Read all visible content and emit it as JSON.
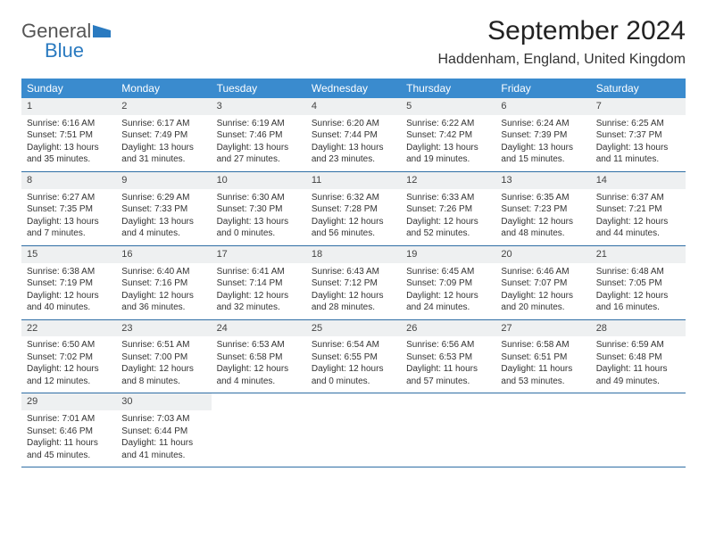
{
  "logo": {
    "line1": "General",
    "line2": "Blue",
    "icon_color": "#2a7ac0",
    "text_color_top": "#555555",
    "text_color_bottom": "#2a7ac0"
  },
  "title": "September 2024",
  "location": "Haddenham, England, United Kingdom",
  "colors": {
    "header_bg": "#3a8bce",
    "header_text": "#ffffff",
    "daynum_bg": "#eef0f1",
    "week_border": "#2f6ea5"
  },
  "dow": [
    "Sunday",
    "Monday",
    "Tuesday",
    "Wednesday",
    "Thursday",
    "Friday",
    "Saturday"
  ],
  "weeks": [
    [
      {
        "n": "1",
        "sr": "Sunrise: 6:16 AM",
        "ss": "Sunset: 7:51 PM",
        "d1": "Daylight: 13 hours",
        "d2": "and 35 minutes."
      },
      {
        "n": "2",
        "sr": "Sunrise: 6:17 AM",
        "ss": "Sunset: 7:49 PM",
        "d1": "Daylight: 13 hours",
        "d2": "and 31 minutes."
      },
      {
        "n": "3",
        "sr": "Sunrise: 6:19 AM",
        "ss": "Sunset: 7:46 PM",
        "d1": "Daylight: 13 hours",
        "d2": "and 27 minutes."
      },
      {
        "n": "4",
        "sr": "Sunrise: 6:20 AM",
        "ss": "Sunset: 7:44 PM",
        "d1": "Daylight: 13 hours",
        "d2": "and 23 minutes."
      },
      {
        "n": "5",
        "sr": "Sunrise: 6:22 AM",
        "ss": "Sunset: 7:42 PM",
        "d1": "Daylight: 13 hours",
        "d2": "and 19 minutes."
      },
      {
        "n": "6",
        "sr": "Sunrise: 6:24 AM",
        "ss": "Sunset: 7:39 PM",
        "d1": "Daylight: 13 hours",
        "d2": "and 15 minutes."
      },
      {
        "n": "7",
        "sr": "Sunrise: 6:25 AM",
        "ss": "Sunset: 7:37 PM",
        "d1": "Daylight: 13 hours",
        "d2": "and 11 minutes."
      }
    ],
    [
      {
        "n": "8",
        "sr": "Sunrise: 6:27 AM",
        "ss": "Sunset: 7:35 PM",
        "d1": "Daylight: 13 hours",
        "d2": "and 7 minutes."
      },
      {
        "n": "9",
        "sr": "Sunrise: 6:29 AM",
        "ss": "Sunset: 7:33 PM",
        "d1": "Daylight: 13 hours",
        "d2": "and 4 minutes."
      },
      {
        "n": "10",
        "sr": "Sunrise: 6:30 AM",
        "ss": "Sunset: 7:30 PM",
        "d1": "Daylight: 13 hours",
        "d2": "and 0 minutes."
      },
      {
        "n": "11",
        "sr": "Sunrise: 6:32 AM",
        "ss": "Sunset: 7:28 PM",
        "d1": "Daylight: 12 hours",
        "d2": "and 56 minutes."
      },
      {
        "n": "12",
        "sr": "Sunrise: 6:33 AM",
        "ss": "Sunset: 7:26 PM",
        "d1": "Daylight: 12 hours",
        "d2": "and 52 minutes."
      },
      {
        "n": "13",
        "sr": "Sunrise: 6:35 AM",
        "ss": "Sunset: 7:23 PM",
        "d1": "Daylight: 12 hours",
        "d2": "and 48 minutes."
      },
      {
        "n": "14",
        "sr": "Sunrise: 6:37 AM",
        "ss": "Sunset: 7:21 PM",
        "d1": "Daylight: 12 hours",
        "d2": "and 44 minutes."
      }
    ],
    [
      {
        "n": "15",
        "sr": "Sunrise: 6:38 AM",
        "ss": "Sunset: 7:19 PM",
        "d1": "Daylight: 12 hours",
        "d2": "and 40 minutes."
      },
      {
        "n": "16",
        "sr": "Sunrise: 6:40 AM",
        "ss": "Sunset: 7:16 PM",
        "d1": "Daylight: 12 hours",
        "d2": "and 36 minutes."
      },
      {
        "n": "17",
        "sr": "Sunrise: 6:41 AM",
        "ss": "Sunset: 7:14 PM",
        "d1": "Daylight: 12 hours",
        "d2": "and 32 minutes."
      },
      {
        "n": "18",
        "sr": "Sunrise: 6:43 AM",
        "ss": "Sunset: 7:12 PM",
        "d1": "Daylight: 12 hours",
        "d2": "and 28 minutes."
      },
      {
        "n": "19",
        "sr": "Sunrise: 6:45 AM",
        "ss": "Sunset: 7:09 PM",
        "d1": "Daylight: 12 hours",
        "d2": "and 24 minutes."
      },
      {
        "n": "20",
        "sr": "Sunrise: 6:46 AM",
        "ss": "Sunset: 7:07 PM",
        "d1": "Daylight: 12 hours",
        "d2": "and 20 minutes."
      },
      {
        "n": "21",
        "sr": "Sunrise: 6:48 AM",
        "ss": "Sunset: 7:05 PM",
        "d1": "Daylight: 12 hours",
        "d2": "and 16 minutes."
      }
    ],
    [
      {
        "n": "22",
        "sr": "Sunrise: 6:50 AM",
        "ss": "Sunset: 7:02 PM",
        "d1": "Daylight: 12 hours",
        "d2": "and 12 minutes."
      },
      {
        "n": "23",
        "sr": "Sunrise: 6:51 AM",
        "ss": "Sunset: 7:00 PM",
        "d1": "Daylight: 12 hours",
        "d2": "and 8 minutes."
      },
      {
        "n": "24",
        "sr": "Sunrise: 6:53 AM",
        "ss": "Sunset: 6:58 PM",
        "d1": "Daylight: 12 hours",
        "d2": "and 4 minutes."
      },
      {
        "n": "25",
        "sr": "Sunrise: 6:54 AM",
        "ss": "Sunset: 6:55 PM",
        "d1": "Daylight: 12 hours",
        "d2": "and 0 minutes."
      },
      {
        "n": "26",
        "sr": "Sunrise: 6:56 AM",
        "ss": "Sunset: 6:53 PM",
        "d1": "Daylight: 11 hours",
        "d2": "and 57 minutes."
      },
      {
        "n": "27",
        "sr": "Sunrise: 6:58 AM",
        "ss": "Sunset: 6:51 PM",
        "d1": "Daylight: 11 hours",
        "d2": "and 53 minutes."
      },
      {
        "n": "28",
        "sr": "Sunrise: 6:59 AM",
        "ss": "Sunset: 6:48 PM",
        "d1": "Daylight: 11 hours",
        "d2": "and 49 minutes."
      }
    ],
    [
      {
        "n": "29",
        "sr": "Sunrise: 7:01 AM",
        "ss": "Sunset: 6:46 PM",
        "d1": "Daylight: 11 hours",
        "d2": "and 45 minutes."
      },
      {
        "n": "30",
        "sr": "Sunrise: 7:03 AM",
        "ss": "Sunset: 6:44 PM",
        "d1": "Daylight: 11 hours",
        "d2": "and 41 minutes."
      },
      {
        "empty": true
      },
      {
        "empty": true
      },
      {
        "empty": true
      },
      {
        "empty": true
      },
      {
        "empty": true
      }
    ]
  ]
}
